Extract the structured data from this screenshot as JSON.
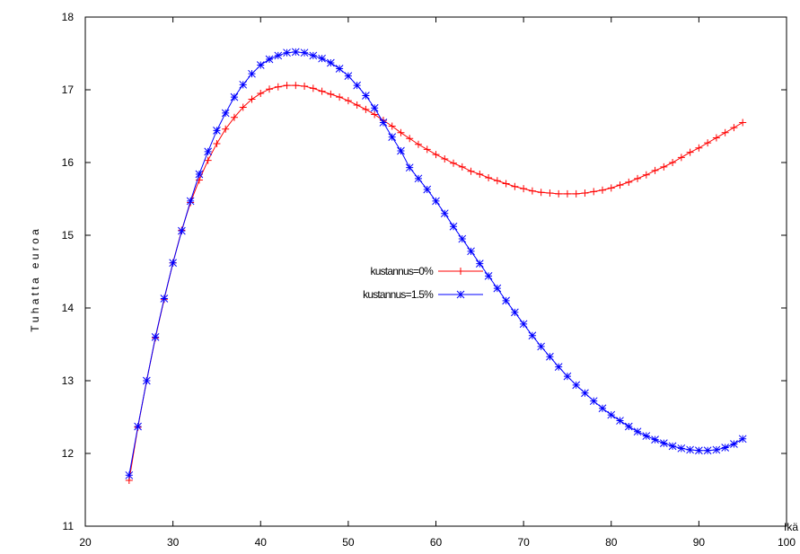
{
  "chart_data": {
    "type": "line",
    "title": "",
    "xlabel": "Ikä",
    "ylabel": "T u h a t t a   e u r o a",
    "xlim": [
      20,
      100
    ],
    "ylim": [
      11,
      18
    ],
    "xticks": [
      20,
      30,
      40,
      50,
      60,
      70,
      80,
      90,
      100
    ],
    "yticks": [
      11,
      12,
      13,
      14,
      15,
      16,
      17,
      18
    ],
    "grid": false,
    "legend_position": "center",
    "series": [
      {
        "name": "kustannus=0%",
        "color": "#ff0000",
        "marker": "plus",
        "x": [
          25,
          26,
          27,
          28,
          29,
          30,
          31,
          32,
          33,
          34,
          35,
          36,
          37,
          38,
          39,
          40,
          41,
          42,
          43,
          44,
          45,
          46,
          47,
          48,
          49,
          50,
          51,
          52,
          53,
          54,
          55,
          56,
          57,
          58,
          59,
          60,
          61,
          62,
          63,
          64,
          65,
          66,
          67,
          68,
          69,
          70,
          71,
          72,
          73,
          74,
          75,
          76,
          77,
          78,
          79,
          80,
          81,
          82,
          83,
          84,
          85,
          86,
          87,
          88,
          89,
          90,
          91,
          92,
          93,
          94,
          95
        ],
        "y": [
          11.63,
          12.36,
          13.0,
          13.59,
          14.12,
          14.62,
          15.07,
          15.45,
          15.76,
          16.03,
          16.26,
          16.46,
          16.62,
          16.76,
          16.87,
          16.95,
          17.01,
          17.04,
          17.06,
          17.06,
          17.05,
          17.02,
          16.98,
          16.94,
          16.9,
          16.85,
          16.79,
          16.73,
          16.66,
          16.58,
          16.5,
          16.41,
          16.33,
          16.25,
          16.18,
          16.11,
          16.05,
          15.99,
          15.94,
          15.88,
          15.84,
          15.79,
          15.75,
          15.71,
          15.67,
          15.64,
          15.61,
          15.59,
          15.58,
          15.57,
          15.57,
          15.57,
          15.58,
          15.6,
          15.62,
          15.65,
          15.69,
          15.73,
          15.78,
          15.83,
          15.89,
          15.94,
          16.0,
          16.07,
          16.14,
          16.2,
          16.27,
          16.34,
          16.41,
          16.48,
          16.55
        ]
      },
      {
        "name": "kustannus=1.5%",
        "color": "#0000ff",
        "marker": "star",
        "x": [
          25,
          26,
          27,
          28,
          29,
          30,
          31,
          32,
          33,
          34,
          35,
          36,
          37,
          38,
          39,
          40,
          41,
          42,
          43,
          44,
          45,
          46,
          47,
          48,
          49,
          50,
          51,
          52,
          53,
          54,
          55,
          56,
          57,
          58,
          59,
          60,
          61,
          62,
          63,
          64,
          65,
          66,
          67,
          68,
          69,
          70,
          71,
          72,
          73,
          74,
          75,
          76,
          77,
          78,
          79,
          80,
          81,
          82,
          83,
          84,
          85,
          86,
          87,
          88,
          89,
          90,
          91,
          92,
          93,
          94,
          95
        ],
        "y": [
          11.7,
          12.37,
          13.0,
          13.6,
          14.13,
          14.62,
          15.06,
          15.47,
          15.84,
          16.15,
          16.44,
          16.68,
          16.9,
          17.07,
          17.22,
          17.34,
          17.42,
          17.47,
          17.51,
          17.52,
          17.51,
          17.47,
          17.43,
          17.37,
          17.29,
          17.19,
          17.06,
          16.92,
          16.75,
          16.55,
          16.35,
          16.16,
          15.93,
          15.78,
          15.63,
          15.47,
          15.3,
          15.12,
          14.95,
          14.78,
          14.61,
          14.44,
          14.27,
          14.1,
          13.94,
          13.78,
          13.62,
          13.47,
          13.33,
          13.19,
          13.06,
          12.94,
          12.83,
          12.72,
          12.62,
          12.53,
          12.45,
          12.37,
          12.3,
          12.24,
          12.19,
          12.14,
          12.1,
          12.07,
          12.05,
          12.04,
          12.04,
          12.05,
          12.08,
          12.13,
          12.2
        ]
      }
    ]
  }
}
